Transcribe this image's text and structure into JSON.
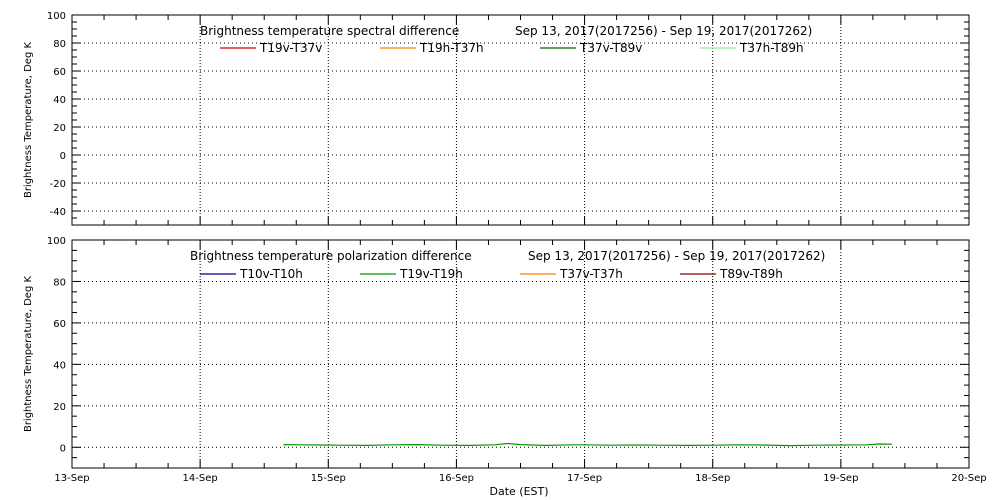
{
  "chart_data": [
    {
      "type": "line",
      "title": "Brightness temperature spectral difference",
      "date_range": "Sep 13, 2017(2017256) - Sep 19, 2017(2017262)",
      "ylabel": "Brightness Temperature, Deg K",
      "ylim": [
        -50,
        100
      ],
      "yticks": [
        -40,
        -20,
        0,
        20,
        40,
        60,
        80,
        100
      ],
      "xlim": [
        0,
        7
      ],
      "grid": true,
      "legend_placement": "top",
      "series": [
        {
          "name": "T19v-T37v",
          "color": "#cc0000",
          "x": [],
          "y": []
        },
        {
          "name": "T19h-T37h",
          "color": "#ff8000",
          "x": [],
          "y": []
        },
        {
          "name": "T37v-T89v",
          "color": "#006400",
          "x": [],
          "y": []
        },
        {
          "name": "T37h-T89h",
          "color": "#90ee90",
          "x": [],
          "y": []
        }
      ]
    },
    {
      "type": "line",
      "title": "Brightness temperature polarization difference",
      "date_range": "Sep 13, 2017(2017256) - Sep 19, 2017(2017262)",
      "ylabel": "Brightness Temperature, Deg K",
      "xlabel": "Date (EST)",
      "ylim": [
        -10,
        100
      ],
      "yticks": [
        0,
        20,
        40,
        60,
        80,
        100
      ],
      "xlim": [
        0,
        7
      ],
      "xticks": [
        {
          "x": 0,
          "label": "13-Sep"
        },
        {
          "x": 1,
          "label": "14-Sep"
        },
        {
          "x": 2,
          "label": "15-Sep"
        },
        {
          "x": 3,
          "label": "16-Sep"
        },
        {
          "x": 4,
          "label": "17-Sep"
        },
        {
          "x": 5,
          "label": "18-Sep"
        },
        {
          "x": 6,
          "label": "19-Sep"
        },
        {
          "x": 7,
          "label": "20-Sep"
        }
      ],
      "grid": true,
      "legend_placement": "top",
      "series": [
        {
          "name": "T10v-T10h",
          "color": "#00008b",
          "x": [],
          "y": []
        },
        {
          "name": "T19v-T19h",
          "color": "#009900",
          "x": [
            1.65,
            1.8,
            1.95,
            2.1,
            2.3,
            2.5,
            2.7,
            2.9,
            3.1,
            3.3,
            3.4,
            3.5,
            3.7,
            3.9,
            4.0,
            4.2,
            4.4,
            4.6,
            4.8,
            5.0,
            5.2,
            5.4,
            5.6,
            5.8,
            6.0,
            6.2,
            6.3,
            6.4
          ],
          "y": [
            1.3,
            1.2,
            1.1,
            1.0,
            0.9,
            1.2,
            1.3,
            1.0,
            0.9,
            1.2,
            1.8,
            1.3,
            0.9,
            1.2,
            1.2,
            1.0,
            1.1,
            1.0,
            0.9,
            1.0,
            1.2,
            1.1,
            0.8,
            1.0,
            1.1,
            1.2,
            1.6,
            1.5
          ]
        },
        {
          "name": "T37v-T37h",
          "color": "#ff8000",
          "x": [],
          "y": []
        },
        {
          "name": "T89v-T89h",
          "color": "#8b0000",
          "x": [],
          "y": []
        }
      ]
    }
  ]
}
